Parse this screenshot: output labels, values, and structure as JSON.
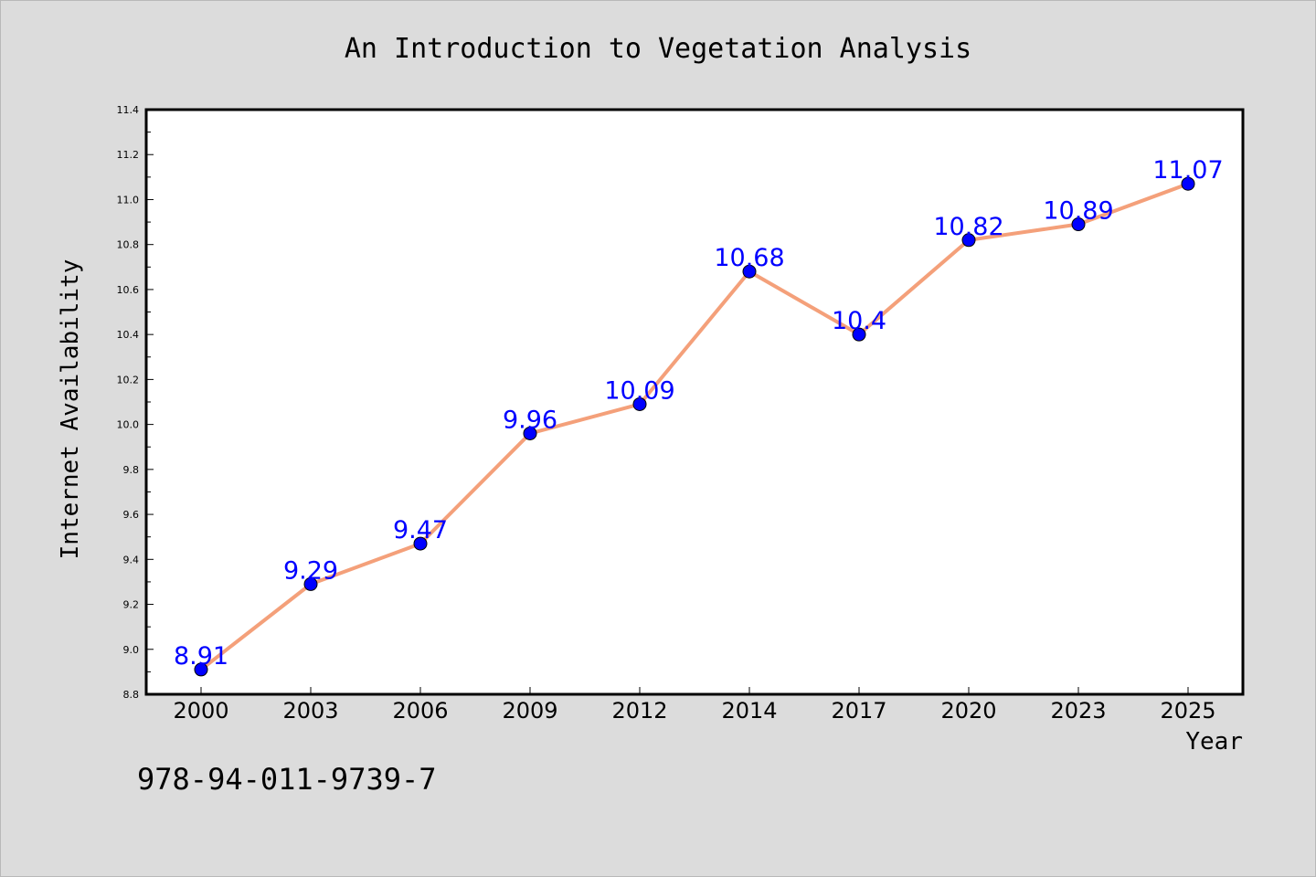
{
  "chart_data": {
    "type": "line",
    "title": "An Introduction to Vegetation Analysis",
    "xlabel": "Year",
    "ylabel": "Internet Availability",
    "categories": [
      "2000",
      "2003",
      "2006",
      "2009",
      "2012",
      "2014",
      "2017",
      "2020",
      "2023",
      "2025"
    ],
    "series": [
      {
        "values": [
          8.91,
          9.29,
          9.47,
          9.96,
          10.09,
          10.68,
          10.4,
          10.82,
          10.89,
          11.07
        ],
        "labels": [
          "8.91",
          "9.29",
          "9.47",
          "9.96",
          "10.09",
          "10.68",
          "10.4",
          "10.82",
          "10.89",
          "11.07"
        ],
        "line_color": "#f4a07a",
        "marker_color": "#0000ff"
      }
    ],
    "ylim": [
      8.8,
      11.4
    ],
    "yticks": [
      "8.8",
      "9.0",
      "9.2",
      "9.4",
      "9.6",
      "9.8",
      "10.0",
      "10.2",
      "10.4",
      "10.6",
      "10.8",
      "11.0",
      "11.2",
      "11.4"
    ],
    "grid": false,
    "legend": "none",
    "background": "#dcdcdc",
    "plot_background": "#ffffff",
    "label_color": "#0000ff"
  },
  "isbn": "978-94-011-9739-7"
}
